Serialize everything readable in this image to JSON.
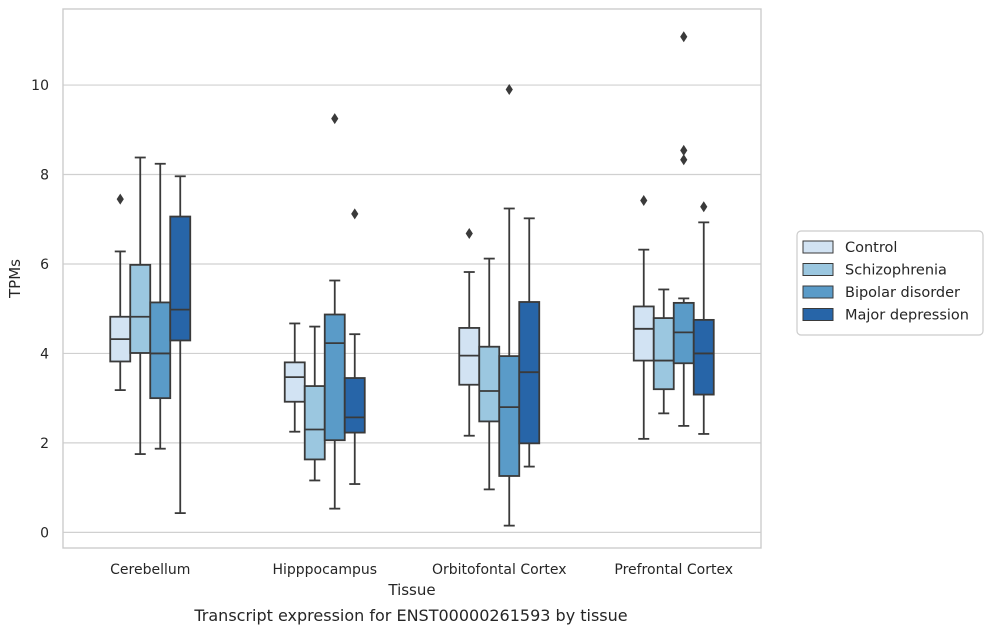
{
  "chart_data": {
    "type": "box",
    "caption": "Transcript expression for ENST00000261593 by tissue",
    "xlabel": "Tissue",
    "ylabel": "TPMs",
    "ylim": [
      -0.35,
      11.7
    ],
    "yticks": [
      0,
      2,
      4,
      6,
      8,
      10
    ],
    "grid": "horizontal",
    "legend_position": "right",
    "categories": [
      "Cerebellum",
      "Hipppocampus",
      "Orbitofontal Cortex",
      "Prefrontal Cortex"
    ],
    "series": [
      {
        "name": "Control",
        "color": "#d2e3f3",
        "boxes": [
          {
            "whislo": 3.18,
            "q1": 3.82,
            "med": 4.32,
            "q3": 4.82,
            "whishi": 6.28,
            "fliers": [
              7.45
            ]
          },
          {
            "whislo": 2.25,
            "q1": 2.92,
            "med": 3.47,
            "q3": 3.8,
            "whishi": 4.67,
            "fliers": []
          },
          {
            "whislo": 2.16,
            "q1": 3.3,
            "med": 3.95,
            "q3": 4.57,
            "whishi": 5.82,
            "fliers": [
              6.68
            ]
          },
          {
            "whislo": 2.09,
            "q1": 3.84,
            "med": 4.55,
            "q3": 5.05,
            "whishi": 6.32,
            "fliers": [
              7.42
            ]
          }
        ]
      },
      {
        "name": "Schizophrenia",
        "color": "#9bc7e0",
        "boxes": [
          {
            "whislo": 1.75,
            "q1": 4.01,
            "med": 4.82,
            "q3": 5.98,
            "whishi": 8.38,
            "fliers": []
          },
          {
            "whislo": 1.16,
            "q1": 1.63,
            "med": 2.3,
            "q3": 3.27,
            "whishi": 4.6,
            "fliers": []
          },
          {
            "whislo": 0.96,
            "q1": 2.48,
            "med": 3.16,
            "q3": 4.15,
            "whishi": 6.12,
            "fliers": []
          },
          {
            "whislo": 2.66,
            "q1": 3.2,
            "med": 3.84,
            "q3": 4.79,
            "whishi": 5.43,
            "fliers": []
          }
        ]
      },
      {
        "name": "Bipolar disorder",
        "color": "#5a9bc8",
        "boxes": [
          {
            "whislo": 1.87,
            "q1": 3.0,
            "med": 4.0,
            "q3": 5.14,
            "whishi": 8.24,
            "fliers": []
          },
          {
            "whislo": 0.53,
            "q1": 2.06,
            "med": 4.23,
            "q3": 4.87,
            "whishi": 5.63,
            "fliers": [
              9.25
            ]
          },
          {
            "whislo": 0.15,
            "q1": 1.26,
            "med": 2.8,
            "q3": 3.94,
            "whishi": 7.24,
            "fliers": [
              9.9
            ]
          },
          {
            "whislo": 2.38,
            "q1": 3.78,
            "med": 4.47,
            "q3": 5.13,
            "whishi": 5.23,
            "fliers": [
              11.08,
              8.54,
              8.33
            ]
          }
        ]
      },
      {
        "name": "Major depression",
        "color": "#2765a8",
        "boxes": [
          {
            "whislo": 0.43,
            "q1": 4.29,
            "med": 4.98,
            "q3": 7.06,
            "whishi": 7.96,
            "fliers": []
          },
          {
            "whislo": 1.08,
            "q1": 2.23,
            "med": 2.57,
            "q3": 3.45,
            "whishi": 4.43,
            "fliers": [
              7.12
            ]
          },
          {
            "whislo": 1.47,
            "q1": 1.99,
            "med": 3.58,
            "q3": 5.15,
            "whishi": 7.02,
            "fliers": []
          },
          {
            "whislo": 2.2,
            "q1": 3.08,
            "med": 4.0,
            "q3": 4.75,
            "whishi": 6.93,
            "fliers": [
              7.28
            ]
          }
        ]
      }
    ]
  }
}
